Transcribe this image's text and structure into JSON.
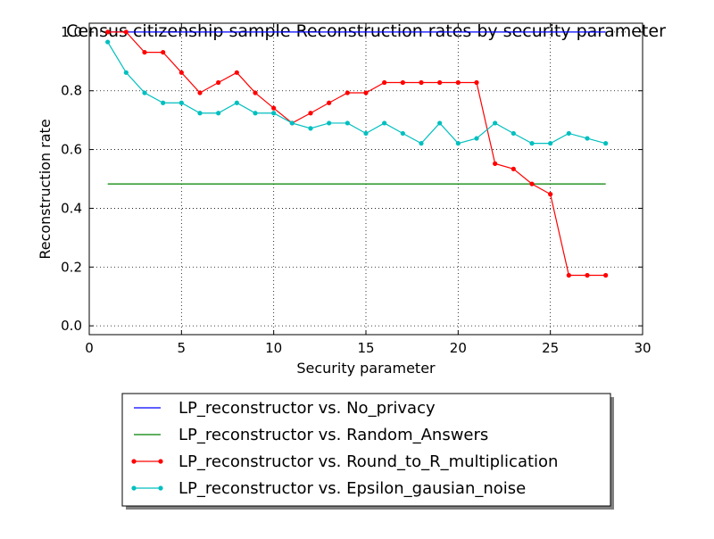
{
  "chart_data": {
    "type": "line",
    "title": "Census citizenship sample Reconstruction rates by security parameter",
    "xlabel": "Security parameter",
    "ylabel": "Reconstruction rate",
    "xlim": [
      0,
      30
    ],
    "ylim": [
      -0.03,
      1.03
    ],
    "xticks": [
      0,
      5,
      10,
      15,
      20,
      25,
      30
    ],
    "yticks": [
      0.0,
      0.2,
      0.4,
      0.6,
      0.8,
      1.0
    ],
    "xtick_labels": [
      "0",
      "5",
      "10",
      "15",
      "20",
      "25",
      "30"
    ],
    "ytick_labels": [
      "0.0",
      "0.2",
      "0.4",
      "0.6",
      "0.8",
      "1.0"
    ],
    "grid": true,
    "legend_position": "below plot",
    "x": [
      1,
      2,
      3,
      4,
      5,
      6,
      7,
      8,
      9,
      10,
      11,
      12,
      13,
      14,
      15,
      16,
      17,
      18,
      19,
      20,
      21,
      22,
      23,
      24,
      25,
      26,
      27,
      28
    ],
    "series": [
      {
        "name": "LP_reconstructor vs. No_privacy",
        "color": "#0000ff",
        "marker": false,
        "values": [
          1,
          1,
          1,
          1,
          1,
          1,
          1,
          1,
          1,
          1,
          1,
          1,
          1,
          1,
          1,
          1,
          1,
          1,
          1,
          1,
          1,
          1,
          1,
          1,
          1,
          1,
          1,
          1
        ]
      },
      {
        "name": "LP_reconstructor vs. Random_Answers",
        "color": "#008000",
        "marker": false,
        "values": [
          0.483,
          0.483,
          0.483,
          0.483,
          0.483,
          0.483,
          0.483,
          0.483,
          0.483,
          0.483,
          0.483,
          0.483,
          0.483,
          0.483,
          0.483,
          0.483,
          0.483,
          0.483,
          0.483,
          0.483,
          0.483,
          0.483,
          0.483,
          0.483,
          0.483,
          0.483,
          0.483,
          0.483
        ]
      },
      {
        "name": "LP_reconstructor vs. Round_to_R_multiplication",
        "color": "#ff0000",
        "marker": true,
        "values": [
          1.0,
          1.0,
          0.931,
          0.931,
          0.862,
          0.793,
          0.828,
          0.862,
          0.793,
          0.741,
          0.69,
          0.724,
          0.759,
          0.793,
          0.793,
          0.828,
          0.828,
          0.828,
          0.828,
          0.828,
          0.828,
          0.552,
          0.534,
          0.483,
          0.448,
          0.172,
          0.172,
          0.172
        ]
      },
      {
        "name": "LP_reconstructor vs. Epsilon_gausian_noise",
        "color": "#00bfbf",
        "marker": true,
        "values": [
          0.966,
          0.862,
          0.793,
          0.759,
          0.759,
          0.724,
          0.724,
          0.759,
          0.724,
          0.724,
          0.69,
          0.672,
          0.69,
          0.69,
          0.655,
          0.69,
          0.655,
          0.621,
          0.69,
          0.621,
          0.638,
          0.69,
          0.655,
          0.621,
          0.621,
          0.655,
          0.638,
          0.621
        ]
      }
    ]
  }
}
